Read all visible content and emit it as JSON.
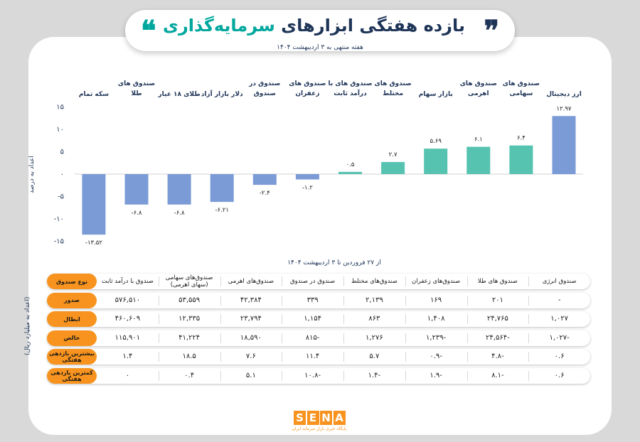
{
  "header": {
    "title_dark": "بازده هفتگی ابزارهای",
    "title_highlight": "سرمایه‌گذاری",
    "quote_right": "❞",
    "quote_left": "❝",
    "subtitle": "هفته منتهی به ۳ اردیبهشت ۱۴۰۴"
  },
  "colors": {
    "blue_bar": "#7b9bd6",
    "teal_bar": "#56c3b0",
    "orange": "#f7931e",
    "navy": "#1f3558",
    "teal": "#00a79d"
  },
  "chart_data": {
    "type": "bar",
    "ylabel": "اعداد به درصد",
    "xlabel": "از ۲۷ فروردین تا ۳ اردیبهشت ۱۴۰۴",
    "ylim": [
      -15,
      15
    ],
    "yticks": [
      15,
      10,
      5,
      0,
      -5,
      -10,
      -15
    ],
    "ytick_labels": [
      "۱۵",
      "۱۰",
      "۵",
      "۰",
      "-۵",
      "-۱۰",
      "-۱۵"
    ],
    "grid": false,
    "categories": [
      [
        "ارز دیجیتال"
      ],
      [
        "صندوق های",
        "سهامی"
      ],
      [
        "صندوق های",
        "اهرمی"
      ],
      [
        "بازار سهام"
      ],
      [
        "صندوق های",
        "مختلط"
      ],
      [
        "صندوق های با",
        "درآمد ثابت"
      ],
      [
        "صندوق های",
        "زعفران"
      ],
      [
        "صندوق در",
        "صندوق"
      ],
      [
        "دلار بازار آزاد"
      ],
      [
        "طلای ۱۸ عیار"
      ],
      [
        "صندوق های",
        "طلا"
      ],
      [
        "سکه تمام"
      ]
    ],
    "values": [
      12.97,
      6.4,
      6.1,
      5.69,
      2.7,
      0.5,
      -1.2,
      -2.4,
      -6.21,
      -6.8,
      -6.8,
      -13.52
    ],
    "value_labels": [
      "۱۲.۹۷",
      "۶.۴",
      "۶.۱",
      "۵.۶۹",
      "۲.۷",
      "۰.۵",
      "-۱.۲",
      "-۲.۴",
      "-۶.۲۱",
      "-۶.۸",
      "-۶.۸",
      "-۱۳.۵۲"
    ],
    "colors": [
      "#7b9bd6",
      "#56c3b0",
      "#56c3b0",
      "#56c3b0",
      "#56c3b0",
      "#56c3b0",
      "#7b9bd6",
      "#7b9bd6",
      "#7b9bd6",
      "#7b9bd6",
      "#7b9bd6",
      "#7b9bd6"
    ]
  },
  "table": {
    "unit_label": "(اعداد به میلیارد ریال)",
    "header_label": "نوع صندوق",
    "columns": [
      "صندوق انرژی",
      "صندوق های طلا",
      "صندوق‌های زعفران",
      "صندوق‌های مختلط",
      "صندوق در صندوق",
      "صندوق‌های اهرمی",
      "صندوق‌های سهامی (سهای اهرمی)",
      "صندوق با درآمد ثابت"
    ],
    "rows": [
      {
        "label": "صدور",
        "values": [
          "-",
          "۲۰۱",
          "۱۶۹",
          "۲,۱۳۹",
          "۳۳۹",
          "۴۲,۳۸۴",
          "۵۳,۵۵۹",
          "۵۷۶,۵۱۰"
        ]
      },
      {
        "label": "ابطال",
        "values": [
          "۱,۰۲۷",
          "۲۴,۷۶۵",
          "۱,۴۰۸",
          "۸۶۳",
          "۱,۱۵۴",
          "۲۳,۷۹۴",
          "۱۲,۳۳۵",
          "۴۶۰,۶۰۹"
        ]
      },
      {
        "label": "خالص",
        "values": [
          "-۱,۰۲۷",
          "-۲۴,۵۶۴",
          "-۱,۲۳۹",
          "۱,۲۷۶",
          "-۸۱۵",
          "۱۸,۵۹۰",
          "۴۱,۲۲۴",
          "۱۱۵,۹۰۱"
        ]
      },
      {
        "label": "بیشترین بازدهی هفتگی",
        "values": [
          "۰.۶",
          "-۴.۸",
          "-۰.۹",
          "۵.۷",
          "۱۱.۴",
          "۷.۶",
          "۱۸.۵",
          "۱.۴"
        ]
      },
      {
        "label": "کمترین بازدهی هفتگی",
        "values": [
          "۰.۶",
          "-۸.۱",
          "-۱.۹",
          "-۱.۴",
          "-۱۰.۸",
          "۵.۱",
          "۰.۴",
          "۰"
        ]
      }
    ]
  },
  "logo": {
    "letters": [
      "S",
      "E",
      "N",
      "A"
    ],
    "tagline": "پایگاه خبری بازار سرمایه ایران"
  }
}
